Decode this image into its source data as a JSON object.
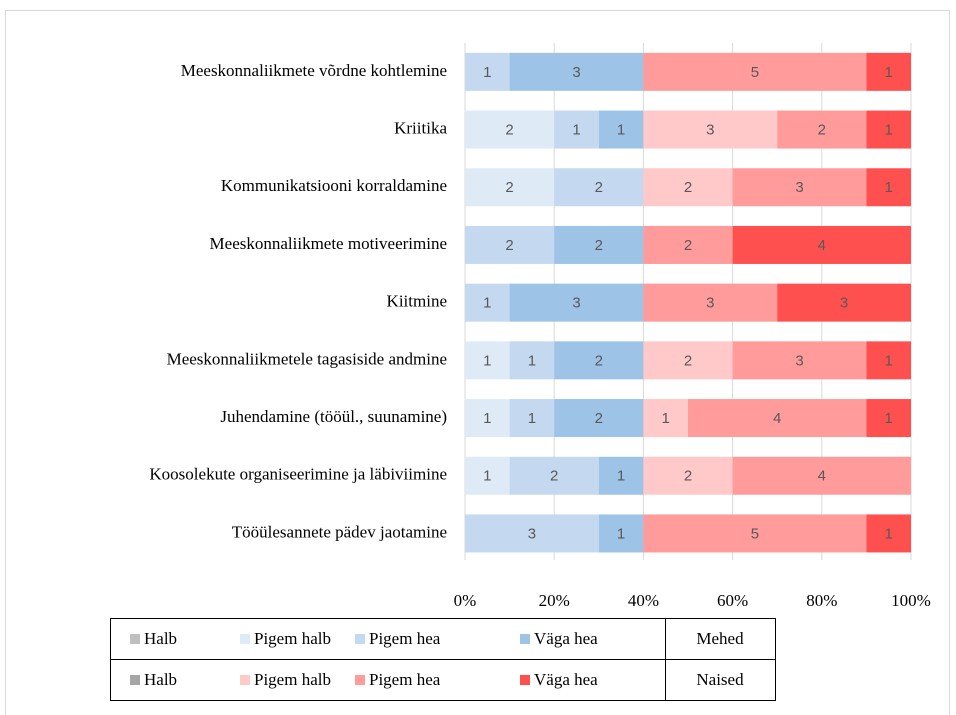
{
  "chart_data": {
    "type": "bar",
    "orientation": "horizontal",
    "stacked": "percent",
    "categories": [
      "Meeskonnaliikmete võrdne kohtlemine",
      "Kriitika",
      "Kommunikatsiooni korraldamine",
      "Meeskonnaliikmete motiveerimine",
      "Kiitmine",
      "Meeskonnaliikmetele tagasiside andmine",
      "Juhendamine (tööül., suunamine)",
      "Koosolekute organiseerimine ja läbiviimine",
      "Tööülesannete pädev jaotamine"
    ],
    "groups": [
      {
        "name": "Mehed",
        "series": [
          {
            "name": "Halb",
            "color": "#bfbfbf",
            "values": [
              0,
              0,
              0,
              0,
              0,
              0,
              0,
              0,
              0
            ]
          },
          {
            "name": "Pigem halb",
            "color": "#deebf7",
            "values": [
              0,
              2,
              2,
              0,
              0,
              1,
              1,
              1,
              0
            ]
          },
          {
            "name": "Pigem hea",
            "color": "#c4d9ef",
            "values": [
              1,
              1,
              2,
              2,
              1,
              1,
              1,
              2,
              3
            ]
          },
          {
            "name": "Väga hea",
            "color": "#9dc3e6",
            "values": [
              3,
              1,
              0,
              2,
              3,
              2,
              2,
              1,
              1
            ]
          }
        ]
      },
      {
        "name": "Naised",
        "series": [
          {
            "name": "Halb",
            "color": "#a6a6a6",
            "values": [
              0,
              0,
              0,
              0,
              0,
              0,
              0,
              0,
              0
            ]
          },
          {
            "name": "Pigem halb",
            "color": "#ffc9c9",
            "values": [
              0,
              3,
              2,
              0,
              0,
              2,
              1,
              2,
              0
            ]
          },
          {
            "name": "Pigem hea",
            "color": "#ff9b9b",
            "values": [
              5,
              2,
              3,
              2,
              3,
              3,
              4,
              4,
              5
            ]
          },
          {
            "name": "Väga hea",
            "color": "#ff5050",
            "values": [
              1,
              1,
              1,
              4,
              3,
              1,
              1,
              0,
              1
            ]
          }
        ]
      }
    ],
    "xlim": [
      0,
      100
    ],
    "xticks": [
      {
        "value": 0,
        "label": "0%"
      },
      {
        "value": 20,
        "label": "20%"
      },
      {
        "value": 40,
        "label": "40%"
      },
      {
        "value": 60,
        "label": "60%"
      },
      {
        "value": 80,
        "label": "80%"
      },
      {
        "value": 100,
        "label": "100%"
      }
    ],
    "grid": true
  }
}
